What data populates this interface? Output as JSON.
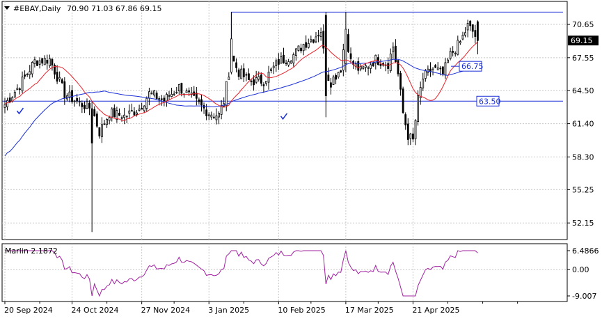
{
  "header": {
    "symbol": "#EBAY,Daily",
    "ohlc": "70.90 71.03 67.86 69.15",
    "dropdown_icon": "triangle-down-icon"
  },
  "colors": {
    "background": "#ffffff",
    "grid": "#c8c8c8",
    "candle": "#000000",
    "ma_fast": "#e8202a",
    "ma_slow": "#1a2fd6",
    "levels": "#1a2fd6",
    "oscillator": "#a020a0",
    "current_price_bg": "#000000"
  },
  "chart_data": [
    {
      "type": "candlestick",
      "title": "#EBAY,Daily",
      "price_axis_ticks": [
        "70.65",
        "67.55",
        "64.50",
        "61.40",
        "58.30",
        "55.25",
        "52.15"
      ],
      "ylim": [
        50.8,
        72.6
      ],
      "date_labels": [
        "20 Sep 2024",
        "24 Oct 2024",
        "27 Nov 2024",
        "3 Jan 2025",
        "10 Feb 2025",
        "17 Mar 2025",
        "21 Apr 2025"
      ],
      "last_ohlc": {
        "open": 70.9,
        "high": 71.03,
        "low": 67.86,
        "close": 69.15
      },
      "current_price_label": "69.15",
      "levels": [
        {
          "label": "66.75",
          "value": 66.75
        },
        {
          "label": "63.50",
          "value": 63.5
        }
      ],
      "resistance_level": 71.8,
      "anchors": [
        [
          0,
          63.2
        ],
        [
          6,
          65.0
        ],
        [
          12,
          67.2
        ],
        [
          18,
          67.4
        ],
        [
          24,
          64.2
        ],
        [
          30,
          63.3
        ],
        [
          35,
          62.8
        ],
        [
          38,
          60.6
        ],
        [
          42,
          62.4
        ],
        [
          48,
          62.1
        ],
        [
          54,
          62.8
        ],
        [
          58,
          64.2
        ],
        [
          64,
          63.6
        ],
        [
          70,
          64.8
        ],
        [
          76,
          63.6
        ],
        [
          82,
          62.4
        ],
        [
          86,
          62.2
        ],
        [
          88,
          63.5
        ],
        [
          91,
          67.6
        ],
        [
          94,
          66.2
        ],
        [
          98,
          65.4
        ],
        [
          104,
          65.4
        ],
        [
          110,
          67.2
        ],
        [
          116,
          67.8
        ],
        [
          120,
          68.8
        ],
        [
          124,
          69.4
        ],
        [
          127,
          70.1
        ],
        [
          129,
          66.2
        ],
        [
          131,
          65.3
        ],
        [
          135,
          66.6
        ],
        [
          137,
          70.0
        ],
        [
          139,
          67.2
        ],
        [
          143,
          66.3
        ],
        [
          149,
          67.4
        ],
        [
          154,
          67.0
        ],
        [
          156,
          68.6
        ],
        [
          158,
          66.0
        ],
        [
          160,
          62.4
        ],
        [
          162,
          60.3
        ],
        [
          164,
          59.8
        ],
        [
          166,
          63.6
        ],
        [
          168,
          65.6
        ],
        [
          172,
          66.6
        ],
        [
          176,
          66.0
        ],
        [
          179,
          67.8
        ],
        [
          183,
          69.0
        ],
        [
          186,
          70.5
        ],
        [
          188,
          70.0
        ],
        [
          190,
          69.15
        ]
      ],
      "special_bars": [
        {
          "index": 35,
          "open": 62.8,
          "high": 63.5,
          "low": 51.3,
          "close": 59.6
        },
        {
          "index": 91,
          "open": 66.2,
          "high": 71.8,
          "low": 66.0,
          "close": 69.3
        },
        {
          "index": 129,
          "open": 71.5,
          "high": 71.8,
          "low": 62.0,
          "close": 64.0
        },
        {
          "index": 137,
          "open": 67.0,
          "high": 71.8,
          "low": 66.2,
          "close": 70.2
        }
      ],
      "series": [
        {
          "name": "",
          "kind": "fast-moving-average",
          "period": 14
        },
        {
          "name": "",
          "kind": "slow-moving-average",
          "period": 50
        }
      ],
      "xlim": [
        0,
        224
      ]
    },
    {
      "type": "line",
      "title": "Marlin 2.1872",
      "name": "Marlin",
      "value_label": "2.1872",
      "y_ticks": [
        "6.4866",
        "0.00",
        "-9.007"
      ],
      "ylim": [
        -9.007,
        6.4866
      ],
      "zero_level": 0.0
    }
  ]
}
